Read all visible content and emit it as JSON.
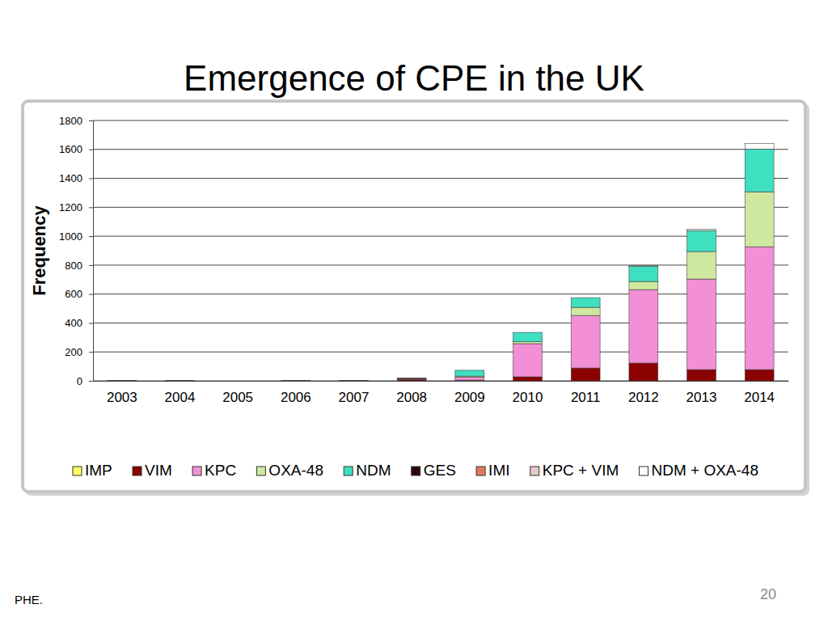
{
  "chart_data": {
    "type": "bar",
    "title": "Emergence of CPE in the UK",
    "y_label": "Frequency",
    "annotations": [
      "PHE.",
      "20"
    ],
    "categories": [
      "2003",
      "2004",
      "2005",
      "2006",
      "2007",
      "2008",
      "2009",
      "2010",
      "2011",
      "2012",
      "2013",
      "2014"
    ],
    "series": [
      {
        "name": "IMP",
        "color": "#ffff66",
        "values": [
          0,
          0,
          0,
          0,
          0,
          0,
          0,
          0,
          0,
          0,
          0,
          0
        ]
      },
      {
        "name": "VIM",
        "color": "#8b0000",
        "values": [
          3,
          3,
          0,
          3,
          3,
          10,
          5,
          28,
          89,
          123,
          78,
          78
        ]
      },
      {
        "name": "KPC",
        "color": "#f28fd6",
        "values": [
          0,
          0,
          0,
          0,
          0,
          5,
          20,
          229,
          363,
          508,
          626,
          849
        ]
      },
      {
        "name": "OXA-48",
        "color": "#cfe8a0",
        "values": [
          0,
          0,
          0,
          0,
          0,
          0,
          8,
          13,
          56,
          56,
          190,
          380
        ]
      },
      {
        "name": "NDM",
        "color": "#3fe0c0",
        "values": [
          0,
          0,
          0,
          0,
          0,
          0,
          40,
          65,
          67,
          106,
          145,
          296
        ]
      },
      {
        "name": "GES",
        "color": "#2a0a0a",
        "values": [
          0,
          0,
          0,
          0,
          0,
          5,
          0,
          0,
          0,
          0,
          0,
          0
        ]
      },
      {
        "name": "IMI",
        "color": "#e07a5f",
        "values": [
          0,
          0,
          0,
          0,
          0,
          0,
          0,
          0,
          0,
          0,
          0,
          0
        ]
      },
      {
        "name": "KPC + VIM",
        "color": "#e6c8c8",
        "values": [
          0,
          0,
          0,
          0,
          0,
          0,
          0,
          0,
          0,
          0,
          0,
          0
        ]
      },
      {
        "name": "NDM + OXA-48",
        "color": "#ffffff",
        "values": [
          0,
          0,
          0,
          0,
          0,
          0,
          0,
          0,
          0,
          5,
          8,
          39
        ]
      }
    ],
    "ylim": [
      0,
      1800
    ],
    "yticks": [
      0,
      200,
      400,
      600,
      800,
      1000,
      1200,
      1400,
      1600,
      1800
    ],
    "grid": true,
    "stacked": true,
    "legend": "bottom"
  }
}
